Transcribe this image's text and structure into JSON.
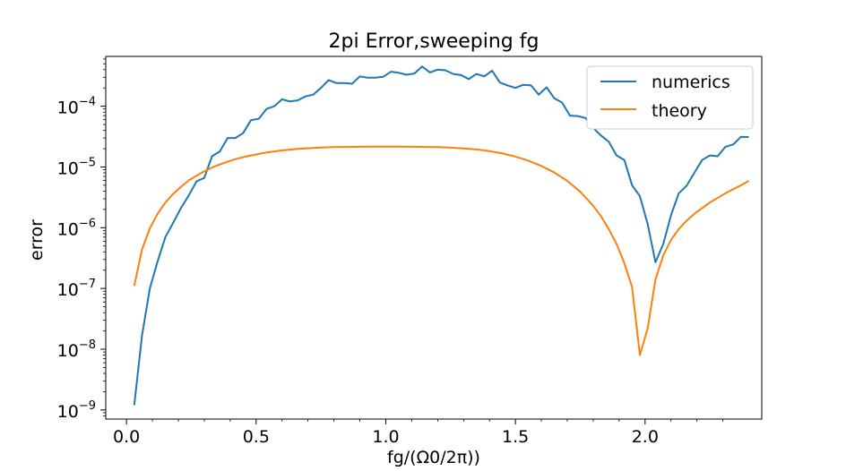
{
  "chart_data": {
    "type": "line",
    "title": "2pi Error,sweeping fg",
    "xlabel": "fg/(Ω0/2π))",
    "ylabel": "error",
    "xlim": [
      -0.08,
      2.45
    ],
    "ylim_log10": [
      -9.15,
      -3.18
    ],
    "yscale": "log",
    "x_ticks": [
      0.0,
      0.5,
      1.0,
      1.5,
      2.0
    ],
    "x_tick_labels": [
      "0.0",
      "0.5",
      "1.0",
      "1.5",
      "2.0"
    ],
    "y_tick_exponents": [
      -9,
      -8,
      -7,
      -6,
      -5,
      -4
    ],
    "y_tick_base": "10",
    "y_tick_sups": [
      "−9",
      "−8",
      "−7",
      "−6",
      "−5",
      "−4"
    ],
    "legend_position": "top-right",
    "grid": false,
    "series": [
      {
        "name": "numerics",
        "color": "#1f77b4",
        "points": [
          [
            0.03,
            1.2e-09
          ],
          [
            0.06,
            1.7e-08
          ],
          [
            0.09,
            1e-07
          ],
          [
            0.12,
            2.8e-07
          ],
          [
            0.15,
            7e-07
          ],
          [
            0.18,
            1.2e-06
          ],
          [
            0.21,
            2.1e-06
          ],
          [
            0.24,
            3.4e-06
          ],
          [
            0.27,
            5.8e-06
          ],
          [
            0.3,
            6.6e-06
          ],
          [
            0.33,
            1.5e-05
          ],
          [
            0.36,
            1.8e-05
          ],
          [
            0.39,
            3e-05
          ],
          [
            0.42,
            3e-05
          ],
          [
            0.45,
            3.6e-05
          ],
          [
            0.48,
            5.9e-05
          ],
          [
            0.51,
            6.2e-05
          ],
          [
            0.54,
            9e-05
          ],
          [
            0.57,
            0.0001
          ],
          [
            0.6,
            0.00013
          ],
          [
            0.63,
            0.00012
          ],
          [
            0.66,
            0.000125
          ],
          [
            0.69,
            0.000145
          ],
          [
            0.72,
            0.000155
          ],
          [
            0.75,
            0.0002
          ],
          [
            0.78,
            0.00027
          ],
          [
            0.81,
            0.00024
          ],
          [
            0.84,
            0.00024
          ],
          [
            0.87,
            0.000235
          ],
          [
            0.9,
            0.00031
          ],
          [
            0.93,
            0.000295
          ],
          [
            0.96,
            0.000295
          ],
          [
            0.99,
            0.000305
          ],
          [
            1.02,
            0.00037
          ],
          [
            1.05,
            0.000355
          ],
          [
            1.08,
            0.00033
          ],
          [
            1.11,
            0.000345
          ],
          [
            1.14,
            0.00045
          ],
          [
            1.17,
            0.00036
          ],
          [
            1.2,
            0.0004
          ],
          [
            1.23,
            0.00039
          ],
          [
            1.26,
            0.00034
          ],
          [
            1.29,
            0.000325
          ],
          [
            1.32,
            0.00028
          ],
          [
            1.35,
            0.00034
          ],
          [
            1.38,
            0.00031
          ],
          [
            1.41,
            0.000385
          ],
          [
            1.44,
            0.000245
          ],
          [
            1.47,
            0.00022
          ],
          [
            1.5,
            0.0002
          ],
          [
            1.53,
            0.000225
          ],
          [
            1.56,
            0.00022
          ],
          [
            1.59,
            0.000155
          ],
          [
            1.62,
            0.000205
          ],
          [
            1.65,
            0.000135
          ],
          [
            1.68,
            0.000115
          ],
          [
            1.71,
            7e-05
          ],
          [
            1.74,
            6.9e-05
          ],
          [
            1.77,
            6.4e-05
          ],
          [
            1.8,
            4.4e-05
          ],
          [
            1.83,
            3.3e-05
          ],
          [
            1.86,
            2.6e-05
          ],
          [
            1.89,
            1.55e-05
          ],
          [
            1.92,
            1.3e-05
          ],
          [
            1.95,
            5e-06
          ],
          [
            1.98,
            3.3e-06
          ],
          [
            2.01,
            1.15e-06
          ],
          [
            2.04,
            2.7e-07
          ],
          [
            2.07,
            5.4e-07
          ],
          [
            2.1,
            1.6e-06
          ],
          [
            2.13,
            3.7e-06
          ],
          [
            2.16,
            4.9e-06
          ],
          [
            2.19,
            8e-06
          ],
          [
            2.22,
            1.3e-05
          ],
          [
            2.25,
            1.55e-05
          ],
          [
            2.28,
            1.5e-05
          ],
          [
            2.31,
            2.15e-05
          ],
          [
            2.34,
            2.35e-05
          ],
          [
            2.37,
            3.15e-05
          ],
          [
            2.4,
            3.1e-05
          ]
        ]
      },
      {
        "name": "theory",
        "color": "#ff7f0e",
        "points": [
          [
            0.03,
            1.1e-07
          ],
          [
            0.06,
            4.4e-07
          ],
          [
            0.09,
            9.8e-07
          ],
          [
            0.12,
            1.7e-06
          ],
          [
            0.15,
            2.6e-06
          ],
          [
            0.18,
            3.6e-06
          ],
          [
            0.21,
            4.7e-06
          ],
          [
            0.24,
            6e-06
          ],
          [
            0.27,
            7.2e-06
          ],
          [
            0.3,
            8.5e-06
          ],
          [
            0.33,
            9.8e-06
          ],
          [
            0.36,
            1.1e-05
          ],
          [
            0.39,
            1.22e-05
          ],
          [
            0.42,
            1.34e-05
          ],
          [
            0.45,
            1.45e-05
          ],
          [
            0.48,
            1.55e-05
          ],
          [
            0.51,
            1.64e-05
          ],
          [
            0.54,
            1.73e-05
          ],
          [
            0.57,
            1.8e-05
          ],
          [
            0.6,
            1.87e-05
          ],
          [
            0.63,
            1.93e-05
          ],
          [
            0.66,
            1.98e-05
          ],
          [
            0.69,
            2.02e-05
          ],
          [
            0.72,
            2.06e-05
          ],
          [
            0.75,
            2.09e-05
          ],
          [
            0.8,
            2.12e-05
          ],
          [
            0.85,
            2.14e-05
          ],
          [
            0.9,
            2.15e-05
          ],
          [
            0.95,
            2.16e-05
          ],
          [
            1.0,
            2.16e-05
          ],
          [
            1.05,
            2.16e-05
          ],
          [
            1.1,
            2.15e-05
          ],
          [
            1.15,
            2.14e-05
          ],
          [
            1.2,
            2.12e-05
          ],
          [
            1.25,
            2.08e-05
          ],
          [
            1.3,
            2.02e-05
          ],
          [
            1.35,
            1.94e-05
          ],
          [
            1.4,
            1.82e-05
          ],
          [
            1.45,
            1.67e-05
          ],
          [
            1.5,
            1.48e-05
          ],
          [
            1.55,
            1.27e-05
          ],
          [
            1.6,
            1.04e-05
          ],
          [
            1.65,
            8.1e-06
          ],
          [
            1.7,
            5.9e-06
          ],
          [
            1.75,
            3.9e-06
          ],
          [
            1.8,
            2.3e-06
          ],
          [
            1.83,
            1.55e-06
          ],
          [
            1.86,
            9.5e-07
          ],
          [
            1.89,
            5.4e-07
          ],
          [
            1.92,
            2.6e-07
          ],
          [
            1.95,
            1.05e-07
          ],
          [
            1.98,
            8e-09
          ],
          [
            2.01,
            2.2e-08
          ],
          [
            2.04,
            1.4e-07
          ],
          [
            2.07,
            3.5e-07
          ],
          [
            2.1,
            6.3e-07
          ],
          [
            2.13,
            9.5e-07
          ],
          [
            2.16,
            1.3e-06
          ],
          [
            2.19,
            1.7e-06
          ],
          [
            2.22,
            2.1e-06
          ],
          [
            2.25,
            2.6e-06
          ],
          [
            2.28,
            3.1e-06
          ],
          [
            2.31,
            3.7e-06
          ],
          [
            2.34,
            4.3e-06
          ],
          [
            2.37,
            5e-06
          ],
          [
            2.4,
            5.9e-06
          ]
        ]
      }
    ]
  }
}
